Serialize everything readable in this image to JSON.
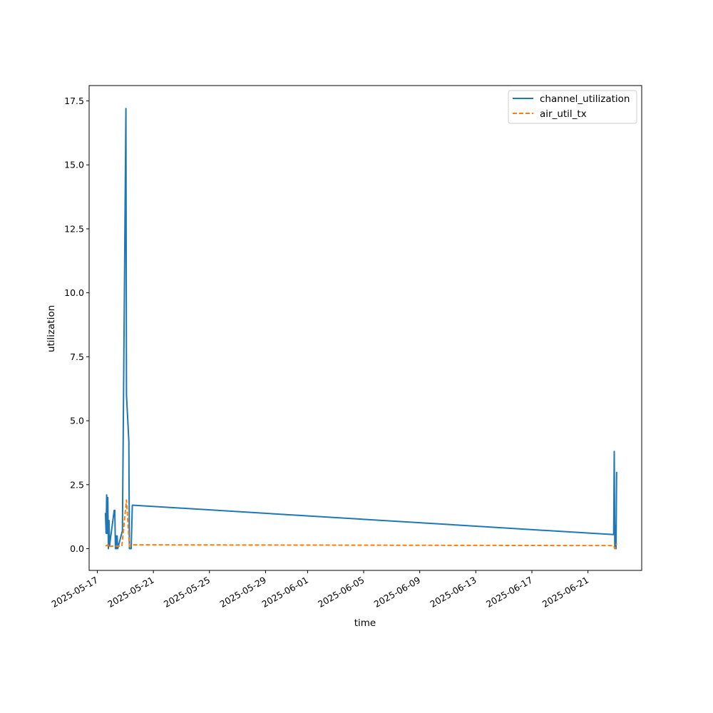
{
  "chart_data": {
    "type": "line",
    "title": "",
    "xlabel": "time",
    "ylabel": "utilization",
    "x_axis_type": "date",
    "xlim": [
      "2025-05-16T10:00",
      "2025-06-24T20:00"
    ],
    "ylim": [
      -0.85,
      18.1
    ],
    "x_ticks": [
      "2025-05-17",
      "2025-05-21",
      "2025-05-25",
      "2025-05-29",
      "2025-06-01",
      "2025-06-05",
      "2025-06-09",
      "2025-06-13",
      "2025-06-17",
      "2025-06-21"
    ],
    "y_ticks": [
      "0.0",
      "2.5",
      "5.0",
      "7.5",
      "10.0",
      "12.5",
      "15.0",
      "17.5"
    ],
    "grid": false,
    "legend": {
      "position": "top-right"
    },
    "series": [
      {
        "name": "channel_utilization",
        "color": "#1f77b4",
        "style": "solid",
        "points": [
          [
            "2025-05-17T14:00",
            1.4
          ],
          [
            "2025-05-17T15:00",
            0.6
          ],
          [
            "2025-05-17T16:00",
            2.1
          ],
          [
            "2025-05-17T17:00",
            0.6
          ],
          [
            "2025-05-17T18:00",
            2.0
          ],
          [
            "2025-05-17T19:00",
            0.0
          ],
          [
            "2025-05-17T20:00",
            1.1
          ],
          [
            "2025-05-17T21:00",
            0.1
          ],
          [
            "2025-05-17T22:00",
            0.3
          ],
          [
            "2025-05-18T05:00",
            1.5
          ],
          [
            "2025-05-18T06:00",
            1.5
          ],
          [
            "2025-05-18T07:00",
            0.0
          ],
          [
            "2025-05-18T08:00",
            0.5
          ],
          [
            "2025-05-18T09:00",
            0.0
          ],
          [
            "2025-05-18T10:00",
            0.5
          ],
          [
            "2025-05-18T11:00",
            0.0
          ],
          [
            "2025-05-18T19:00",
            0.7
          ],
          [
            "2025-05-19T01:00",
            17.2
          ],
          [
            "2025-05-19T02:00",
            6.0
          ],
          [
            "2025-05-19T06:00",
            4.2
          ],
          [
            "2025-05-19T07:00",
            0.0
          ],
          [
            "2025-05-19T10:00",
            0.0
          ],
          [
            "2025-05-19T12:00",
            1.7
          ],
          [
            "2025-06-22T20:00",
            0.55
          ],
          [
            "2025-06-22T21:00",
            3.8
          ],
          [
            "2025-06-22T22:00",
            0.0
          ],
          [
            "2025-06-22T23:00",
            0.9
          ],
          [
            "2025-06-23T00:00",
            0.0
          ],
          [
            "2025-06-23T01:00",
            3.0
          ]
        ]
      },
      {
        "name": "air_util_tx",
        "color": "#ff7f0e",
        "style": "dashed",
        "points": [
          [
            "2025-05-17T14:00",
            0.1
          ],
          [
            "2025-05-17T18:00",
            0.15
          ],
          [
            "2025-05-17T19:00",
            0.05
          ],
          [
            "2025-05-17T22:00",
            0.1
          ],
          [
            "2025-05-18T10:00",
            0.1
          ],
          [
            "2025-05-18T18:00",
            0.1
          ],
          [
            "2025-05-19T02:00",
            1.9
          ],
          [
            "2025-05-19T07:00",
            0.1
          ],
          [
            "2025-05-19T12:00",
            0.15
          ],
          [
            "2025-06-22T20:00",
            0.12
          ],
          [
            "2025-06-22T22:00",
            0.0
          ],
          [
            "2025-06-23T00:00",
            0.1
          ],
          [
            "2025-06-23T01:00",
            0.2
          ]
        ]
      }
    ]
  }
}
